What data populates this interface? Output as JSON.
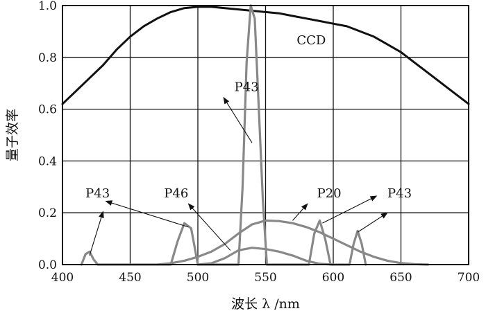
{
  "chart_data": {
    "type": "line",
    "title": "",
    "xlabel": "波长 λ /nm",
    "ylabel": "量子效率",
    "xlim": [
      400,
      700
    ],
    "ylim": [
      0,
      1.0
    ],
    "grid": true,
    "x_ticks": [
      400,
      450,
      500,
      550,
      600,
      650,
      700
    ],
    "y_ticks": [
      0.0,
      0.2,
      0.4,
      0.6,
      0.8,
      1.0
    ],
    "x_tick_labels": [
      "400",
      "450",
      "500",
      "550",
      "600",
      "650",
      "700"
    ],
    "y_tick_labels": [
      "0.0",
      "0.2",
      "0.4",
      "0.6",
      "0.8",
      "1.0"
    ],
    "series": [
      {
        "name": "CCD",
        "color": "#111111",
        "x": [
          400,
          410,
          420,
          430,
          440,
          450,
          460,
          470,
          480,
          490,
          500,
          510,
          520,
          530,
          540,
          550,
          560,
          570,
          580,
          590,
          600,
          610,
          620,
          630,
          640,
          650,
          660,
          670,
          680,
          690,
          700
        ],
        "y": [
          0.62,
          0.67,
          0.72,
          0.77,
          0.83,
          0.88,
          0.92,
          0.95,
          0.975,
          0.99,
          0.995,
          0.995,
          0.99,
          0.985,
          0.98,
          0.975,
          0.97,
          0.96,
          0.95,
          0.94,
          0.93,
          0.92,
          0.9,
          0.88,
          0.85,
          0.82,
          0.78,
          0.74,
          0.7,
          0.66,
          0.62
        ]
      },
      {
        "name": "P43",
        "color": "#888888",
        "x": [
          414,
          417,
          420,
          423,
          426,
          480,
          485,
          490,
          495,
          500,
          530,
          533,
          536,
          539,
          542,
          545,
          548,
          551,
          582,
          586,
          590,
          594,
          598,
          612,
          615,
          618,
          621,
          624
        ],
        "y": [
          0.0,
          0.04,
          0.05,
          0.02,
          0.0,
          0.0,
          0.09,
          0.16,
          0.14,
          0.0,
          0.0,
          0.3,
          0.78,
          1.0,
          0.95,
          0.6,
          0.25,
          0.0,
          0.0,
          0.12,
          0.17,
          0.1,
          0.0,
          0.0,
          0.08,
          0.13,
          0.08,
          0.0
        ]
      },
      {
        "name": "P20",
        "color": "#888888",
        "x": [
          470,
          480,
          490,
          500,
          510,
          520,
          530,
          540,
          550,
          560,
          570,
          580,
          590,
          600,
          610,
          620,
          630,
          640,
          650,
          660,
          670
        ],
        "y": [
          0.0,
          0.005,
          0.015,
          0.03,
          0.05,
          0.08,
          0.12,
          0.155,
          0.17,
          0.168,
          0.16,
          0.145,
          0.125,
          0.1,
          0.075,
          0.05,
          0.03,
          0.015,
          0.006,
          0.002,
          0.0
        ]
      },
      {
        "name": "P46",
        "color": "#888888",
        "x": [
          500,
          510,
          520,
          530,
          540,
          550,
          560,
          570,
          580,
          590,
          600
        ],
        "y": [
          0.0,
          0.005,
          0.025,
          0.055,
          0.065,
          0.06,
          0.05,
          0.035,
          0.015,
          0.003,
          0.0
        ]
      }
    ],
    "annotations": [
      {
        "text": "CCD",
        "at": [
          573,
          0.85
        ]
      },
      {
        "text": "P43",
        "at": [
          527,
          0.67
        ],
        "arrows": [
          [
            540,
            0.47,
            519,
            0.645
          ]
        ]
      },
      {
        "text": "P43",
        "at": [
          417,
          0.26
        ],
        "arrows": [
          [
            420,
            0.035,
            430,
            0.205
          ],
          [
            493,
            0.145,
            432,
            0.245
          ]
        ]
      },
      {
        "text": "P46",
        "at": [
          475,
          0.26
        ],
        "arrows": [
          [
            524,
            0.055,
            493,
            0.235
          ]
        ]
      },
      {
        "text": "P20",
        "at": [
          588,
          0.26
        ],
        "arrows": [
          [
            570,
            0.17,
            581,
            0.235
          ]
        ]
      },
      {
        "text": "P43",
        "at": [
          640,
          0.26
        ],
        "arrows": [
          [
            592,
            0.16,
            632,
            0.265
          ],
          [
            618,
            0.125,
            640,
            0.2
          ]
        ]
      }
    ]
  }
}
